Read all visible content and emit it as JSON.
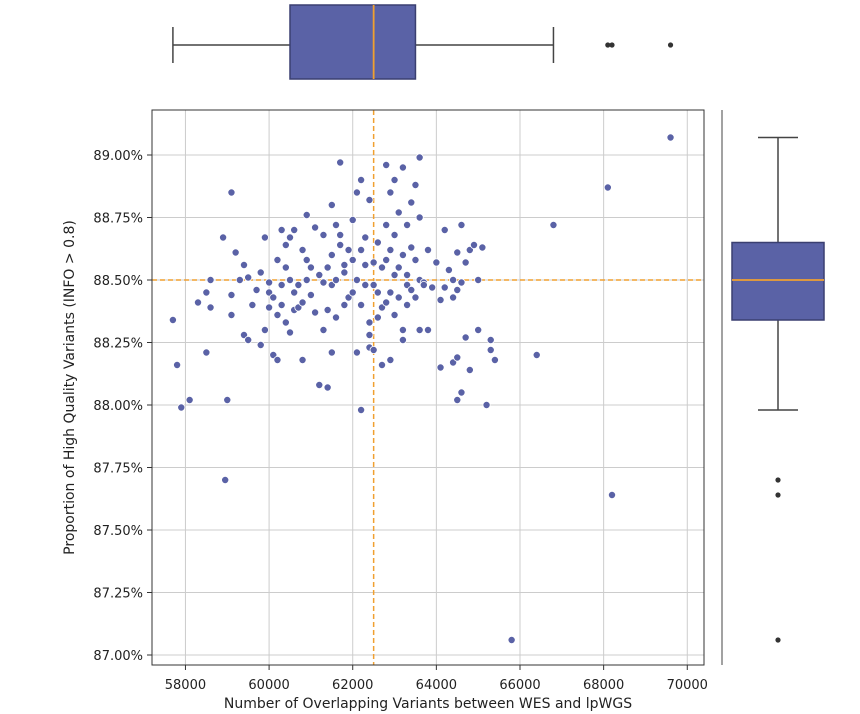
{
  "chart_data": {
    "type": "scatter",
    "title": "",
    "xlabel": "Number of Overlapping Variants between WES and lpWGS",
    "ylabel": "Proportion of High Quality Variants (INFO > 0.8)",
    "xlim": [
      57200,
      70400
    ],
    "ylim": [
      86.96,
      89.18
    ],
    "x_ticks": [
      58000,
      60000,
      62000,
      64000,
      66000,
      68000,
      70000
    ],
    "x_tick_labels": [
      "58000",
      "60000",
      "62000",
      "64000",
      "66000",
      "68000",
      "70000"
    ],
    "y_ticks": [
      87.0,
      87.25,
      87.5,
      87.75,
      88.0,
      88.25,
      88.5,
      88.75,
      89.0
    ],
    "y_tick_labels": [
      "87.00%",
      "87.25%",
      "87.50%",
      "87.75%",
      "88.00%",
      "88.25%",
      "88.50%",
      "88.75%",
      "89.00%"
    ],
    "grid": true,
    "reference_lines": {
      "x_median": 62500,
      "y_median": 88.5
    },
    "colors": {
      "points": "#5a62a6",
      "box": "#5a62a6",
      "median_line": "#f0a030",
      "reference_lines": "#f0a030"
    },
    "marginal_x_box": {
      "whisker_low": 57700,
      "q1": 60500,
      "median": 62500,
      "q3": 63500,
      "whisker_high": 66800,
      "outliers": [
        68100,
        68200,
        69600
      ]
    },
    "marginal_y_box": {
      "whisker_low": 87.98,
      "q1": 88.34,
      "median": 88.5,
      "q3": 88.65,
      "whisker_high": 89.07,
      "outliers": [
        87.7,
        87.64,
        87.06
      ]
    },
    "points": [
      [
        57700,
        88.34
      ],
      [
        57800,
        88.16
      ],
      [
        57900,
        87.99
      ],
      [
        58100,
        88.02
      ],
      [
        58300,
        88.41
      ],
      [
        58500,
        88.21
      ],
      [
        58500,
        88.45
      ],
      [
        58600,
        88.5
      ],
      [
        58600,
        88.39
      ],
      [
        58900,
        88.67
      ],
      [
        59000,
        88.02
      ],
      [
        58950,
        87.7
      ],
      [
        59100,
        88.85
      ],
      [
        59100,
        88.44
      ],
      [
        59100,
        88.36
      ],
      [
        59200,
        88.61
      ],
      [
        59300,
        88.5
      ],
      [
        59400,
        88.56
      ],
      [
        59400,
        88.28
      ],
      [
        59500,
        88.26
      ],
      [
        59500,
        88.51
      ],
      [
        59600,
        88.4
      ],
      [
        59700,
        88.46
      ],
      [
        59800,
        88.24
      ],
      [
        59800,
        88.53
      ],
      [
        59900,
        88.3
      ],
      [
        59900,
        88.67
      ],
      [
        60000,
        88.45
      ],
      [
        60000,
        88.39
      ],
      [
        60000,
        88.49
      ],
      [
        60100,
        88.2
      ],
      [
        60100,
        88.43
      ],
      [
        60200,
        88.18
      ],
      [
        60200,
        88.36
      ],
      [
        60200,
        88.58
      ],
      [
        60300,
        88.48
      ],
      [
        60300,
        88.7
      ],
      [
        60300,
        88.4
      ],
      [
        60400,
        88.64
      ],
      [
        60400,
        88.33
      ],
      [
        60400,
        88.55
      ],
      [
        60500,
        88.29
      ],
      [
        60500,
        88.5
      ],
      [
        60500,
        88.67
      ],
      [
        60600,
        88.38
      ],
      [
        60600,
        88.45
      ],
      [
        60600,
        88.7
      ],
      [
        60700,
        88.48
      ],
      [
        60700,
        88.39
      ],
      [
        60800,
        88.18
      ],
      [
        60800,
        88.41
      ],
      [
        60800,
        88.62
      ],
      [
        60900,
        88.76
      ],
      [
        60900,
        88.58
      ],
      [
        60900,
        88.5
      ],
      [
        61000,
        88.44
      ],
      [
        61000,
        88.55
      ],
      [
        61100,
        88.71
      ],
      [
        61100,
        88.37
      ],
      [
        61200,
        88.52
      ],
      [
        61200,
        88.08
      ],
      [
        61300,
        88.3
      ],
      [
        61300,
        88.49
      ],
      [
        61300,
        88.68
      ],
      [
        61400,
        88.55
      ],
      [
        61400,
        88.07
      ],
      [
        61400,
        88.38
      ],
      [
        61500,
        88.21
      ],
      [
        61500,
        88.48
      ],
      [
        61500,
        88.6
      ],
      [
        61500,
        88.8
      ],
      [
        61600,
        88.72
      ],
      [
        61600,
        88.35
      ],
      [
        61600,
        88.5
      ],
      [
        61700,
        88.64
      ],
      [
        61700,
        88.68
      ],
      [
        61700,
        88.97
      ],
      [
        61800,
        88.56
      ],
      [
        61800,
        88.4
      ],
      [
        61800,
        88.53
      ],
      [
        61900,
        88.62
      ],
      [
        61900,
        88.43
      ],
      [
        62000,
        88.74
      ],
      [
        62000,
        88.45
      ],
      [
        62000,
        88.58
      ],
      [
        62100,
        88.85
      ],
      [
        62100,
        88.5
      ],
      [
        62100,
        88.21
      ],
      [
        62200,
        88.9
      ],
      [
        62200,
        88.62
      ],
      [
        62200,
        88.4
      ],
      [
        62200,
        87.98
      ],
      [
        62300,
        88.67
      ],
      [
        62300,
        88.56
      ],
      [
        62300,
        88.48
      ],
      [
        62400,
        88.33
      ],
      [
        62400,
        88.82
      ],
      [
        62400,
        88.28
      ],
      [
        62400,
        88.23
      ],
      [
        62500,
        88.48
      ],
      [
        62500,
        88.57
      ],
      [
        62500,
        88.22
      ],
      [
        62600,
        88.45
      ],
      [
        62600,
        88.35
      ],
      [
        62600,
        88.65
      ],
      [
        62700,
        88.16
      ],
      [
        62700,
        88.39
      ],
      [
        62700,
        88.55
      ],
      [
        62800,
        88.96
      ],
      [
        62800,
        88.72
      ],
      [
        62800,
        88.58
      ],
      [
        62800,
        88.41
      ],
      [
        62900,
        88.85
      ],
      [
        62900,
        88.62
      ],
      [
        62900,
        88.45
      ],
      [
        62900,
        88.18
      ],
      [
        63000,
        88.9
      ],
      [
        63000,
        88.68
      ],
      [
        63000,
        88.52
      ],
      [
        63000,
        88.36
      ],
      [
        63100,
        88.77
      ],
      [
        63100,
        88.55
      ],
      [
        63100,
        88.43
      ],
      [
        63200,
        88.95
      ],
      [
        63200,
        88.6
      ],
      [
        63200,
        88.3
      ],
      [
        63200,
        88.26
      ],
      [
        63300,
        88.72
      ],
      [
        63300,
        88.48
      ],
      [
        63300,
        88.4
      ],
      [
        63300,
        88.52
      ],
      [
        63400,
        88.81
      ],
      [
        63400,
        88.63
      ],
      [
        63400,
        88.46
      ],
      [
        63500,
        88.88
      ],
      [
        63500,
        88.58
      ],
      [
        63500,
        88.43
      ],
      [
        63600,
        88.99
      ],
      [
        63600,
        88.75
      ],
      [
        63600,
        88.5
      ],
      [
        63600,
        88.3
      ],
      [
        63700,
        88.49
      ],
      [
        63700,
        88.48
      ],
      [
        63800,
        88.62
      ],
      [
        63800,
        88.3
      ],
      [
        63900,
        88.47
      ],
      [
        64000,
        88.57
      ],
      [
        64100,
        88.15
      ],
      [
        64100,
        88.42
      ],
      [
        64200,
        88.7
      ],
      [
        64200,
        88.47
      ],
      [
        64300,
        88.54
      ],
      [
        64400,
        88.17
      ],
      [
        64400,
        88.5
      ],
      [
        64400,
        88.43
      ],
      [
        64500,
        88.61
      ],
      [
        64500,
        88.19
      ],
      [
        64500,
        88.02
      ],
      [
        64500,
        88.46
      ],
      [
        64600,
        88.05
      ],
      [
        64600,
        88.72
      ],
      [
        64600,
        88.49
      ],
      [
        64700,
        88.27
      ],
      [
        64700,
        88.57
      ],
      [
        64800,
        88.62
      ],
      [
        64800,
        88.14
      ],
      [
        64900,
        88.64
      ],
      [
        65000,
        88.3
      ],
      [
        65000,
        88.5
      ],
      [
        65100,
        88.63
      ],
      [
        65200,
        88.0
      ],
      [
        65300,
        88.26
      ],
      [
        65300,
        88.22
      ],
      [
        65400,
        88.18
      ],
      [
        65800,
        87.06
      ],
      [
        66400,
        88.2
      ],
      [
        66800,
        88.72
      ],
      [
        68100,
        88.87
      ],
      [
        68200,
        87.64
      ],
      [
        69600,
        89.07
      ]
    ]
  }
}
